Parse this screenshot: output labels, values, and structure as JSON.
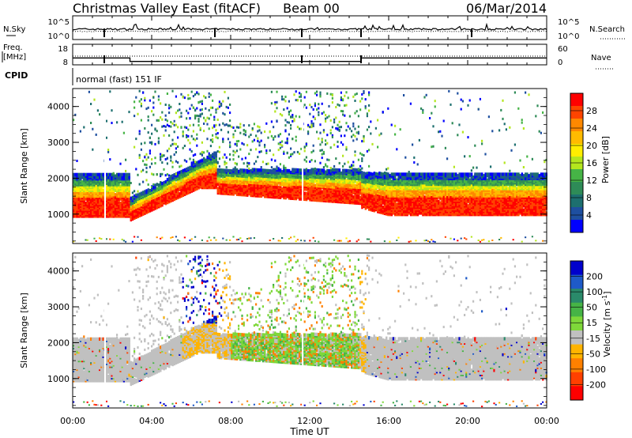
{
  "header": {
    "station": "Christmas Valley East (fitACF)",
    "beam": "Beam 00",
    "date": "06/Mar/2014"
  },
  "noise_panel": {
    "left_label": "N.Sky",
    "left_ticks": [
      "10^5",
      "10^0"
    ],
    "right_label": "N.Search",
    "right_ticks": [
      "10^5",
      "10^0"
    ]
  },
  "freq_panel": {
    "left_label_1": "Freq.",
    "left_label_2": "[MHz]",
    "left_ticks": [
      "18",
      "8"
    ],
    "right_label": "Nave",
    "right_ticks": [
      "60",
      "0"
    ]
  },
  "cpid": {
    "label": "CPID",
    "value": "normal (fast) 151 IF"
  },
  "chart_data": [
    {
      "type": "heatmap",
      "name": "Power",
      "ylabel": "Slant Range [km]",
      "ylim": [
        180,
        4500
      ],
      "yticks": [
        "1000",
        "2000",
        "3000",
        "4000"
      ],
      "xlim_hours": [
        0,
        24
      ],
      "colorbar": {
        "label": "Power [dB]",
        "ticks": [
          "28",
          "24",
          "20",
          "16",
          "12",
          "8",
          "4"
        ],
        "colors": [
          "#ff0000",
          "#ff4400",
          "#ff8800",
          "#ffbb00",
          "#ffee00",
          "#b4e61e",
          "#46b446",
          "#2e8b57",
          "#1d6f6f",
          "#1e4fa0",
          "#0000ff"
        ]
      }
    },
    {
      "type": "heatmap",
      "name": "Velocity",
      "ylabel": "Slant Range [km]",
      "ylim": [
        180,
        4500
      ],
      "yticks": [
        "1000",
        "2000",
        "3000",
        "4000"
      ],
      "xlim_hours": [
        0,
        24
      ],
      "colorbar": {
        "label": "Velocity [m s",
        "label_sup": "-1",
        "label_end": "]",
        "ticks": [
          "200",
          "100",
          "50",
          "15",
          "-15",
          "-50",
          "-100",
          "-200"
        ],
        "colors": [
          "#0000cc",
          "#1e5ac8",
          "#2a8a6a",
          "#46b446",
          "#7fd83a",
          "#c0c0c0",
          "#ffb400",
          "#ff8000",
          "#ff4000",
          "#ff0000"
        ]
      }
    }
  ],
  "x_axis": {
    "label": "Time UT",
    "ticks": [
      "00:00",
      "04:00",
      "08:00",
      "12:00",
      "16:00",
      "20:00",
      "00:00"
    ]
  }
}
